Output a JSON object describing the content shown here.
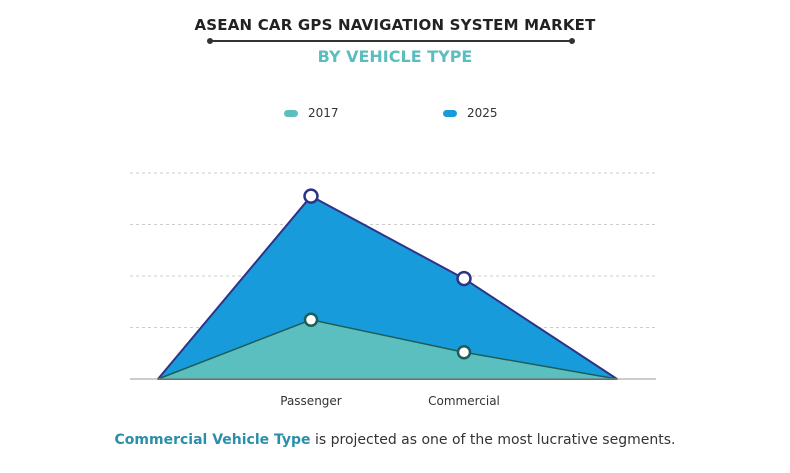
{
  "header": {
    "title": "ASEAN CAR GPS NAVIGATION SYSTEM MARKET",
    "subtitle": "BY VEHICLE TYPE"
  },
  "footer": {
    "highlight": "Commercial Vehicle Type",
    "rest": " is projected as one of the most lucrative segments."
  },
  "colors": {
    "series_2017_fill": "#5bbfbf",
    "series_2025_fill": "#189bdb",
    "series_2025_line": "#2d3488",
    "series_2017_line": "#1d5e58",
    "grid": "#cccccc"
  },
  "chart_data": {
    "type": "area",
    "categories": [
      "",
      "Passenger",
      "Commercial",
      ""
    ],
    "series": [
      {
        "name": "2017",
        "values": [
          0,
          1.15,
          0.52,
          0
        ]
      },
      {
        "name": "2025",
        "values": [
          0,
          3.55,
          1.95,
          0
        ]
      }
    ],
    "ylim": [
      0,
      4
    ],
    "grid": true,
    "legend": "top"
  }
}
